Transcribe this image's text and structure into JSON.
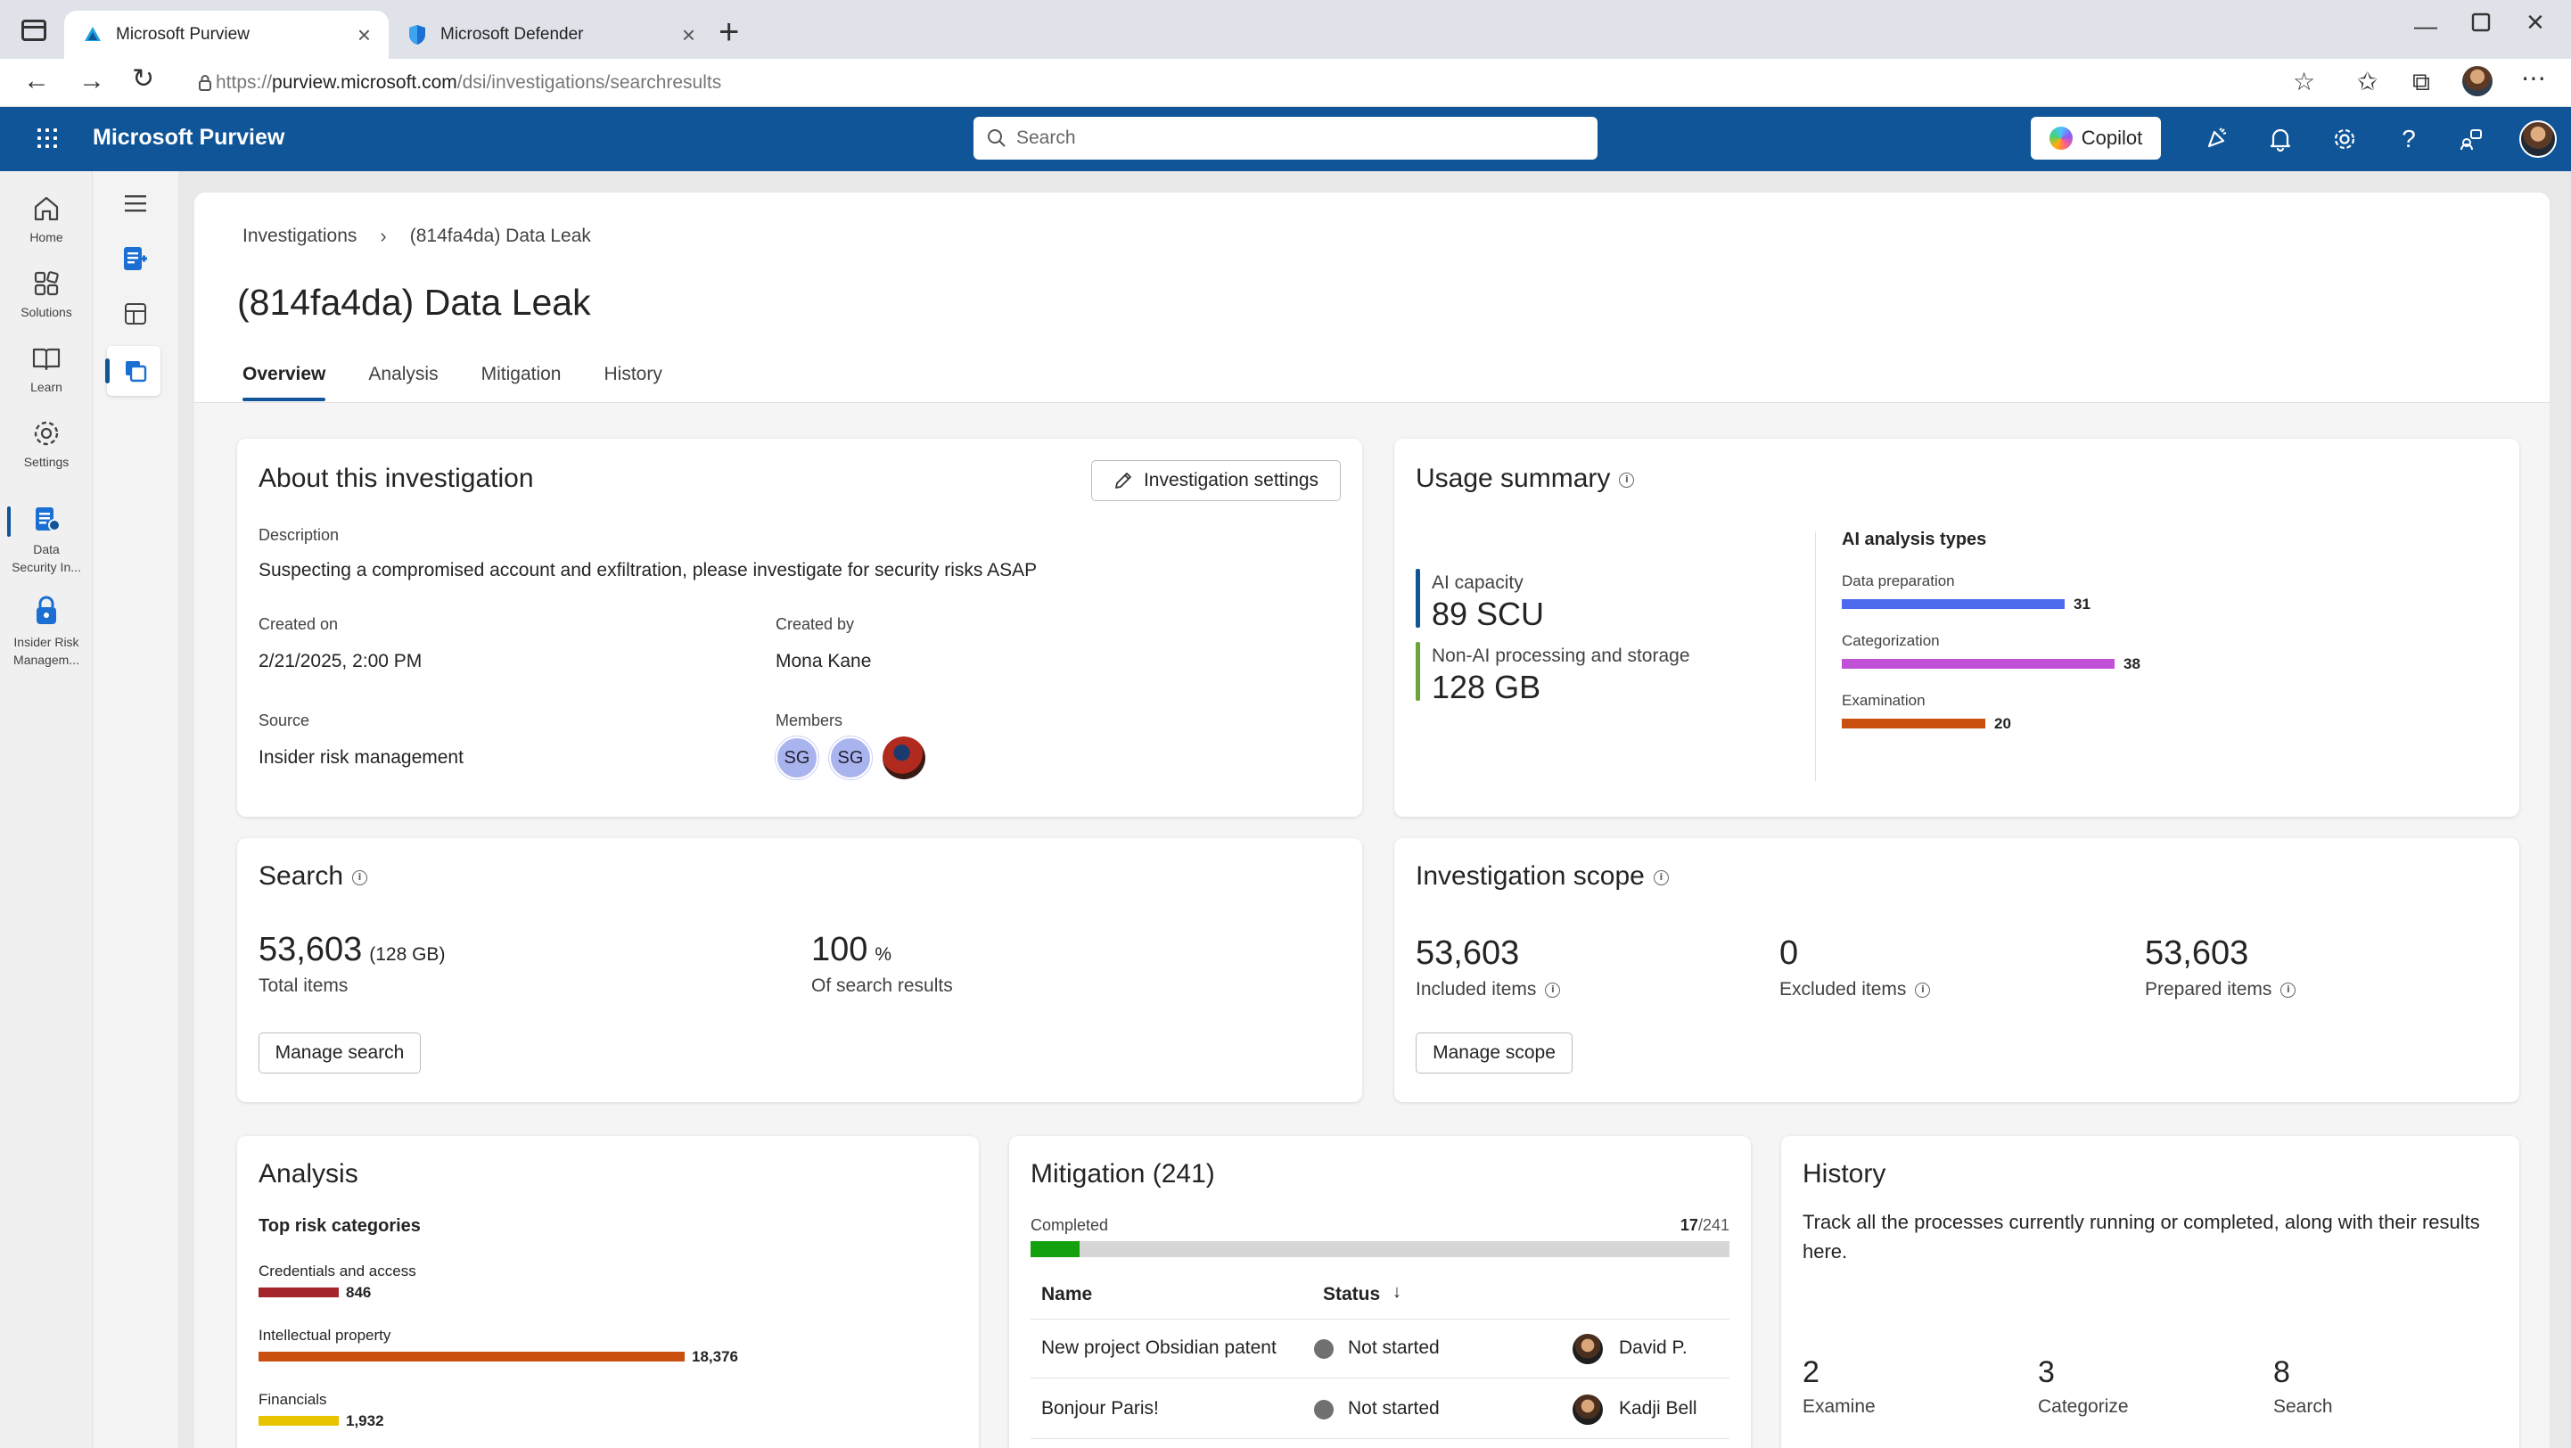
{
  "browser": {
    "tabs": [
      {
        "label": "Microsoft Purview",
        "active": true
      },
      {
        "label": "Microsoft Defender",
        "active": false
      }
    ],
    "url_prefix": "https://",
    "url_host": "purview.microsoft.com",
    "url_path": "/dsi/investigations/searchresults"
  },
  "header": {
    "app_name": "Microsoft Purview",
    "search_placeholder": "Search",
    "copilot_label": "Copilot"
  },
  "rail": {
    "items": [
      {
        "label": "Home",
        "icon": "home-icon"
      },
      {
        "label": "Solutions",
        "icon": "solutions-icon"
      },
      {
        "label": "Learn",
        "icon": "book-icon"
      },
      {
        "label": "Settings",
        "icon": "gear-icon"
      },
      {
        "label1": "Data",
        "label2": "Security In...",
        "icon": "data-security-icon"
      },
      {
        "label1": "Insider Risk",
        "label2": "Managem...",
        "icon": "insider-risk-icon"
      }
    ]
  },
  "page": {
    "breadcrumb_root": "Investigations",
    "breadcrumb_current": "(814fa4da) Data Leak",
    "title": "(814fa4da) Data Leak",
    "tabs": [
      "Overview",
      "Analysis",
      "Mitigation",
      "History"
    ]
  },
  "about": {
    "title": "About this investigation",
    "settings_button": "Investigation settings",
    "description_label": "Description",
    "description": "Suspecting a compromised account and exfiltration, please investigate for security risks ASAP",
    "created_on_label": "Created on",
    "created_on": "2/21/2025, 2:00 PM",
    "created_by_label": "Created by",
    "created_by": "Mona Kane",
    "source_label": "Source",
    "source": "Insider risk management",
    "members_label": "Members",
    "members": [
      "SG",
      "SG"
    ]
  },
  "usage": {
    "title": "Usage summary",
    "ai_capacity_label": "AI capacity",
    "ai_capacity_value": "89 SCU",
    "non_ai_label": "Non-AI processing and storage",
    "non_ai_value": "128 GB",
    "analysis_types_title": "AI analysis types",
    "analysis_types": [
      {
        "label": "Data preparation",
        "value": 31,
        "color": "#4f6bed"
      },
      {
        "label": "Categorization",
        "value": 38,
        "color": "#c050d6"
      },
      {
        "label": "Examination",
        "value": 20,
        "color": "#ca5010"
      }
    ],
    "colors": {
      "ai": "#0f5598",
      "non_ai": "#6ba539"
    }
  },
  "search": {
    "title": "Search",
    "total_value": "53,603",
    "total_size": "(128 GB)",
    "total_label": "Total items",
    "percent_value": "100",
    "percent_unit": "%",
    "percent_label": "Of search results",
    "button": "Manage search"
  },
  "scope": {
    "title": "Investigation scope",
    "included_value": "53,603",
    "included_label": "Included items",
    "excluded_value": "0",
    "excluded_label": "Excluded items",
    "prepared_value": "53,603",
    "prepared_label": "Prepared items",
    "button": "Manage scope"
  },
  "analysis": {
    "title": "Analysis",
    "subtitle": "Top risk categories",
    "categories": [
      {
        "label": "Credentials and access",
        "value": 846,
        "value_text": "846",
        "color": "#a4262c"
      },
      {
        "label": "Intellectual property",
        "value": 18376,
        "value_text": "18,376",
        "color": "#ca5010"
      },
      {
        "label": "Financials",
        "value": 1932,
        "value_text": "1,932",
        "color": "#e8c400"
      }
    ]
  },
  "mitigation": {
    "title": "Mitigation (241)",
    "progress_label": "Completed",
    "completed": "17",
    "total": "/241",
    "progress_fraction": 0.0705,
    "col_name": "Name",
    "col_status": "Status",
    "rows": [
      {
        "name": "New project Obsidian patent",
        "status": "Not started",
        "owner": "David P."
      },
      {
        "name": "Bonjour Paris!",
        "status": "Not started",
        "owner": "Kadji Bell"
      }
    ],
    "colors": {
      "progress": "#13a10e",
      "track": "#d6d6d6"
    }
  },
  "history": {
    "title": "History",
    "description": "Track all the processes currently running or completed, along with their results here.",
    "stats": [
      {
        "value": "2",
        "label": "Examine"
      },
      {
        "value": "3",
        "label": "Categorize"
      },
      {
        "value": "8",
        "label": "Search"
      }
    ]
  }
}
